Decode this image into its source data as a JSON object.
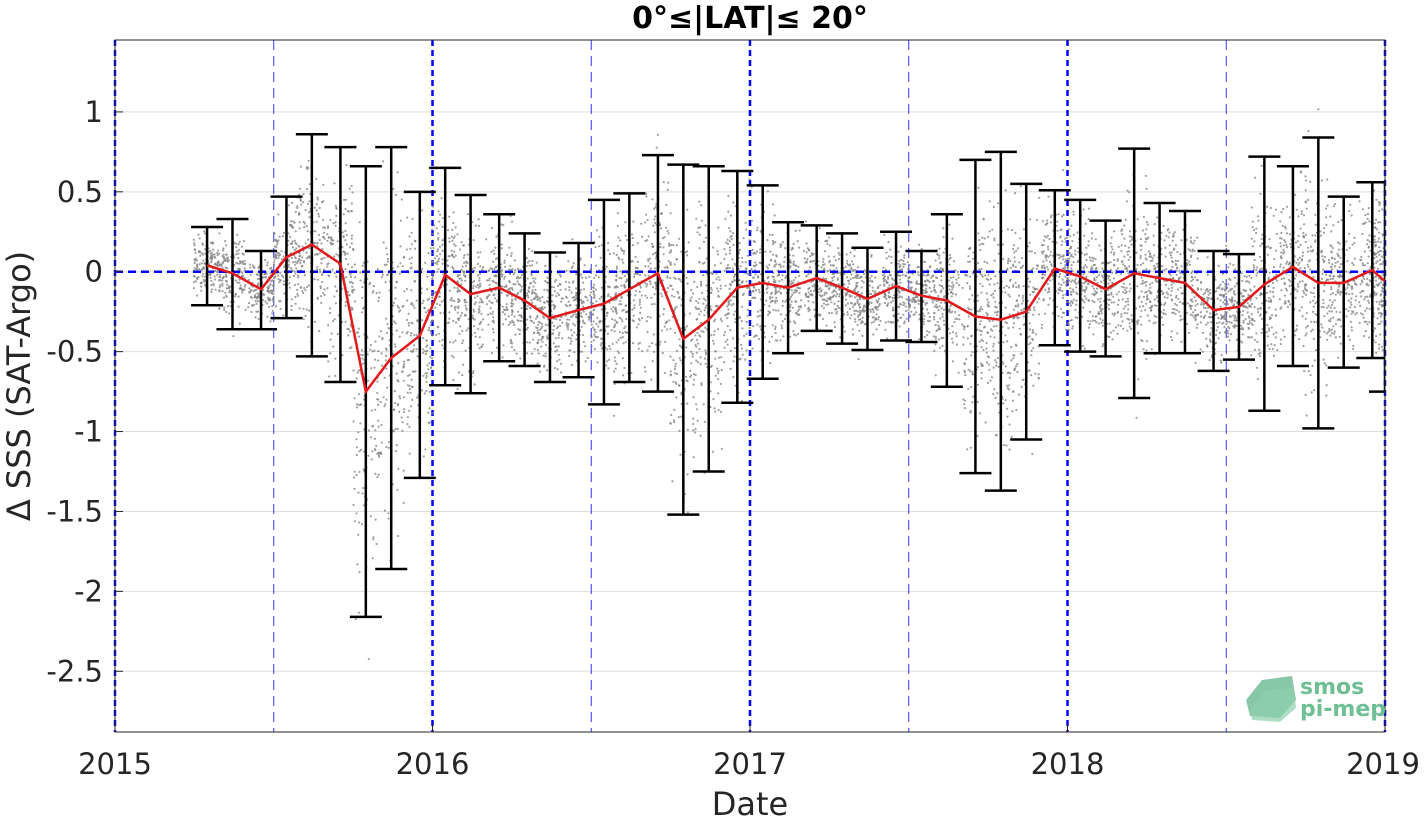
{
  "chart_data": {
    "type": "line",
    "title": "0°≤|LAT|≤ 20°",
    "xlabel": "Date",
    "ylabel": "Δ SSS (SAT-Argo)",
    "xlim": [
      2015.0,
      2019.0
    ],
    "ylim": [
      -2.88,
      1.45
    ],
    "x_ticks": [
      2015,
      2016,
      2017,
      2018,
      2019
    ],
    "y_ticks": [
      -2.5,
      -2,
      -1.5,
      -1,
      -0.5,
      0,
      0.5,
      1
    ],
    "y_tick_labels": [
      "-2.5",
      "-2",
      "-1.5",
      "-1",
      "-0.5",
      "0",
      "0.5",
      "1"
    ],
    "grid": "horizontal",
    "reference_line": 0,
    "vertical_lines_major": [
      2015,
      2016,
      2017,
      2018,
      2019
    ],
    "vertical_lines_minor": [
      2015.5,
      2016.5,
      2017.5,
      2018.5
    ],
    "series": [
      {
        "type": "line",
        "color": "#e31a1c",
        "x": [
          2015.29,
          2015.37,
          2015.46,
          2015.54,
          2015.62,
          2015.71,
          2015.79,
          2015.87,
          2015.96,
          2016.04,
          2016.12,
          2016.21,
          2016.29,
          2016.37,
          2016.46,
          2016.54,
          2016.62,
          2016.71,
          2016.79,
          2016.87,
          2016.96,
          2017.04,
          2017.12,
          2017.21,
          2017.29,
          2017.37,
          2017.46,
          2017.54,
          2017.62,
          2017.71,
          2017.79,
          2017.87,
          2017.96,
          2018.04,
          2018.12,
          2018.21,
          2018.29,
          2018.37,
          2018.46,
          2018.54,
          2018.62,
          2018.71,
          2018.79,
          2018.87,
          2018.96,
          2019.0
        ],
        "y": [
          0.04,
          -0.01,
          -0.11,
          0.09,
          0.17,
          0.05,
          -0.75,
          -0.54,
          -0.4,
          -0.02,
          -0.14,
          -0.1,
          -0.18,
          -0.29,
          -0.24,
          -0.2,
          -0.11,
          -0.01,
          -0.42,
          -0.3,
          -0.1,
          -0.07,
          -0.1,
          -0.04,
          -0.1,
          -0.17,
          -0.09,
          -0.15,
          -0.18,
          -0.28,
          -0.3,
          -0.25,
          0.02,
          -0.03,
          -0.11,
          -0.01,
          -0.04,
          -0.07,
          -0.24,
          -0.22,
          -0.08,
          0.03,
          -0.07,
          -0.07,
          0.01,
          -0.06
        ]
      },
      {
        "type": "errorbar",
        "color": "#000000",
        "x": [
          2015.29,
          2015.37,
          2015.46,
          2015.54,
          2015.62,
          2015.71,
          2015.79,
          2015.87,
          2015.96,
          2016.04,
          2016.12,
          2016.21,
          2016.29,
          2016.37,
          2016.46,
          2016.54,
          2016.62,
          2016.71,
          2016.79,
          2016.87,
          2016.96,
          2017.04,
          2017.12,
          2017.21,
          2017.29,
          2017.37,
          2017.46,
          2017.54,
          2017.62,
          2017.71,
          2017.79,
          2017.87,
          2017.96,
          2018.04,
          2018.12,
          2018.21,
          2018.29,
          2018.37,
          2018.46,
          2018.54,
          2018.62,
          2018.71,
          2018.79,
          2018.87,
          2018.96,
          2019.0
        ],
        "upper": [
          0.28,
          0.33,
          0.13,
          0.47,
          0.86,
          0.78,
          0.66,
          0.78,
          0.5,
          0.65,
          0.48,
          0.36,
          0.24,
          0.12,
          0.18,
          0.45,
          0.49,
          0.73,
          0.67,
          0.66,
          0.63,
          0.54,
          0.31,
          0.29,
          0.24,
          0.15,
          0.25,
          0.13,
          0.36,
          0.7,
          0.75,
          0.55,
          0.51,
          0.45,
          0.32,
          0.77,
          0.43,
          0.38,
          0.13,
          0.11,
          0.72,
          0.66,
          0.84,
          0.47,
          0.56,
          0.56
        ],
        "lower": [
          -0.21,
          -0.36,
          -0.36,
          -0.29,
          -0.53,
          -0.69,
          -2.16,
          -1.86,
          -1.29,
          -0.71,
          -0.76,
          -0.56,
          -0.59,
          -0.69,
          -0.66,
          -0.83,
          -0.69,
          -0.75,
          -1.52,
          -1.25,
          -0.82,
          -0.67,
          -0.51,
          -0.37,
          -0.45,
          -0.49,
          -0.43,
          -0.44,
          -0.72,
          -1.26,
          -1.37,
          -1.05,
          -0.46,
          -0.5,
          -0.53,
          -0.79,
          -0.51,
          -0.51,
          -0.62,
          -0.55,
          -0.87,
          -0.59,
          -0.98,
          -0.6,
          -0.54,
          -0.75
        ]
      }
    ],
    "scatter_color": "#808080",
    "colors": {
      "mean": "#e31a1c",
      "errorbar": "#000000",
      "reference": "#0000ff",
      "grid": "#dedede"
    }
  },
  "logo": {
    "line1": "smos",
    "line2": "pi-mep"
  }
}
